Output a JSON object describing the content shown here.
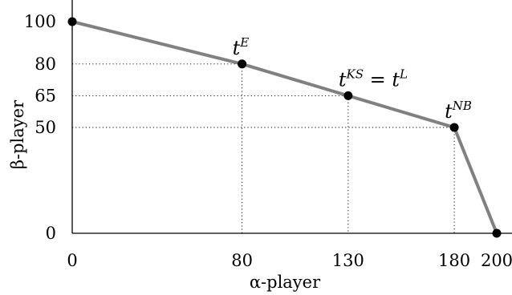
{
  "chart_data": {
    "type": "line",
    "xlabel": "α-player",
    "ylabel": "β-player",
    "x_ticks": [
      0,
      80,
      130,
      180,
      200
    ],
    "y_ticks": [
      0,
      50,
      65,
      80,
      100
    ],
    "xlim": [
      0,
      200
    ],
    "ylim": [
      0,
      100
    ],
    "grid": false,
    "series": [
      {
        "color": "#808080",
        "x": [
          0,
          80,
          130,
          180,
          200
        ],
        "y": [
          100,
          80,
          65,
          50,
          0
        ]
      }
    ],
    "guide_points": [
      {
        "x": 80,
        "y": 80
      },
      {
        "x": 130,
        "y": 65
      },
      {
        "x": 180,
        "y": 50
      }
    ],
    "annotations": [
      {
        "x": 80,
        "y": 80,
        "base": "t",
        "sup": "E",
        "tail": "",
        "tail_sup": ""
      },
      {
        "x": 130,
        "y": 65,
        "base": "t",
        "sup": "KS",
        "tail": " = t",
        "tail_sup": "L"
      },
      {
        "x": 180,
        "y": 50,
        "base": "t",
        "sup": "NB",
        "tail": "",
        "tail_sup": ""
      }
    ]
  }
}
